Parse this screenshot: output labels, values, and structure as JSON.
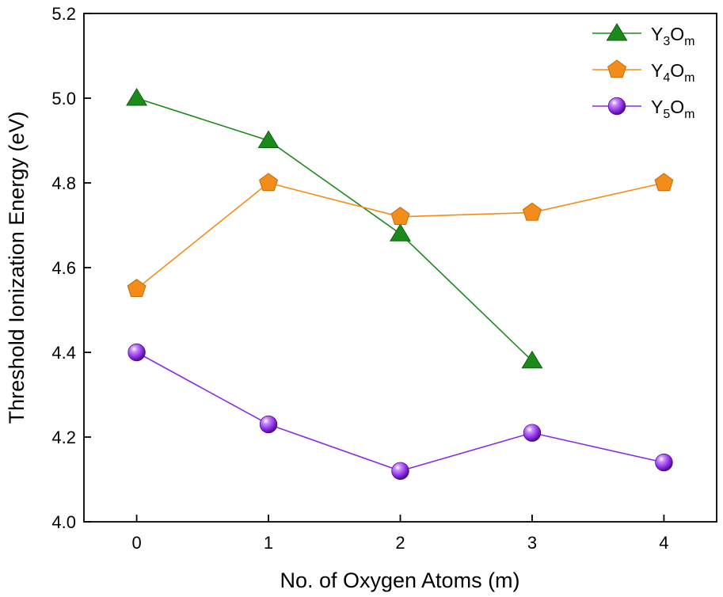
{
  "chart_data": {
    "type": "line",
    "xlabel": "No. of Oxygen Atoms (m)",
    "ylabel": "Threshold Ionization Energy (eV)",
    "xlim": [
      -0.4,
      4.4
    ],
    "ylim": [
      4.0,
      5.2
    ],
    "xticks": [
      "0",
      "1",
      "2",
      "3",
      "4"
    ],
    "yticks": [
      "4.0",
      "4.2",
      "4.4",
      "4.6",
      "4.8",
      "5.0",
      "5.2"
    ],
    "grid": false,
    "legend_position": "top-right",
    "series": [
      {
        "name": "Y3Om",
        "legend": {
          "base": "Y",
          "sub1": "3",
          "mid": "O",
          "sub2": "m"
        },
        "x": [
          0,
          1,
          2,
          3
        ],
        "y": [
          5.0,
          4.9,
          4.68,
          4.38
        ],
        "color": "#1b8a1b",
        "marker": "triangle"
      },
      {
        "name": "Y4Om",
        "legend": {
          "base": "Y",
          "sub1": "4",
          "mid": "O",
          "sub2": "m"
        },
        "x": [
          0,
          1,
          2,
          3,
          4
        ],
        "y": [
          4.55,
          4.8,
          4.72,
          4.73,
          4.8
        ],
        "color": "#f28c1a",
        "marker": "pentagon"
      },
      {
        "name": "Y5Om",
        "legend": {
          "base": "Y",
          "sub1": "5",
          "mid": "O",
          "sub2": "m"
        },
        "x": [
          0,
          1,
          2,
          3,
          4
        ],
        "y": [
          4.4,
          4.23,
          4.12,
          4.21,
          4.14
        ],
        "color": "#8a2be2",
        "marker": "sphere"
      }
    ]
  }
}
